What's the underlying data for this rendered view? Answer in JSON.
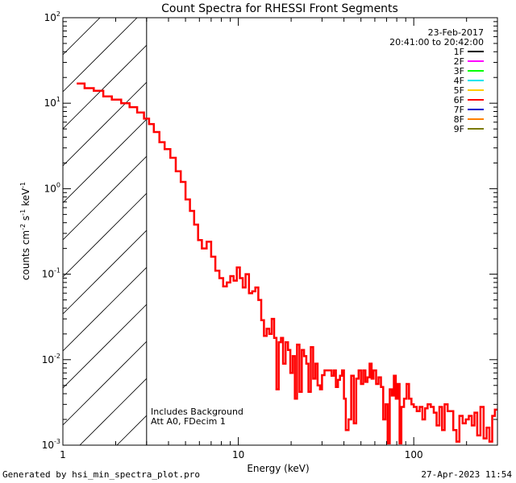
{
  "chart_data": {
    "type": "line",
    "title": "Count Spectra for RHESSI Front Segments",
    "xlabel": "Energy (keV)",
    "ylabel_main": "counts cm",
    "ylabel_exp1": "-2",
    "ylabel_mid": " s",
    "ylabel_exp2": "-1",
    "ylabel_tail": " keV",
    "ylabel_exp3": "-1",
    "xscale": "log",
    "yscale": "log",
    "xlim": [
      1,
      300
    ],
    "ylim": [
      0.001,
      100
    ],
    "x_ticks": [
      {
        "value": 1,
        "label": "1"
      },
      {
        "value": 10,
        "label": "10"
      },
      {
        "value": 100,
        "label": "100"
      }
    ],
    "y_ticks": [
      {
        "value": 0.001,
        "base": "10",
        "exp": "-3"
      },
      {
        "value": 0.01,
        "base": "10",
        "exp": "-2"
      },
      {
        "value": 0.1,
        "base": "10",
        "exp": "-1"
      },
      {
        "value": 1,
        "base": "10",
        "exp": "0"
      },
      {
        "value": 10,
        "base": "10",
        "exp": "1"
      },
      {
        "value": 100,
        "base": "10",
        "exp": "2"
      }
    ],
    "hatched_region": {
      "x_from": 1,
      "x_to": 3
    },
    "date": "23-Feb-2017",
    "time_range": "20:41:00 to 20:42:00",
    "legend": [
      {
        "label": "1F",
        "color": "#000000"
      },
      {
        "label": "2F",
        "color": "#ff00ff"
      },
      {
        "label": "3F",
        "color": "#00ff00"
      },
      {
        "label": "4F",
        "color": "#00e5ee"
      },
      {
        "label": "5F",
        "color": "#ffcc00"
      },
      {
        "label": "6F",
        "color": "#ff0000"
      },
      {
        "label": "7F",
        "color": "#0000cc"
      },
      {
        "label": "8F",
        "color": "#ff8000"
      },
      {
        "label": "9F",
        "color": "#7a7a00"
      }
    ],
    "annotations": [
      "Includes Background",
      "Att A0, FDecim 1"
    ],
    "series": [
      {
        "name": "6F",
        "color": "#ff0000",
        "steps": [
          [
            1.2,
            17
          ],
          [
            1.33,
            15
          ],
          [
            1.5,
            14
          ],
          [
            1.7,
            12
          ],
          [
            1.9,
            11
          ],
          [
            2.15,
            10
          ],
          [
            2.4,
            9
          ],
          [
            2.65,
            7.8
          ],
          [
            2.9,
            6.6
          ],
          [
            3.1,
            5.7
          ],
          [
            3.3,
            4.6
          ],
          [
            3.55,
            3.5
          ],
          [
            3.8,
            2.9
          ],
          [
            4.1,
            2.3
          ],
          [
            4.4,
            1.6
          ],
          [
            4.7,
            1.2
          ],
          [
            5.0,
            0.75
          ],
          [
            5.3,
            0.55
          ],
          [
            5.6,
            0.38
          ],
          [
            5.9,
            0.25
          ],
          [
            6.2,
            0.2
          ],
          [
            6.6,
            0.24
          ],
          [
            7.0,
            0.16
          ],
          [
            7.4,
            0.11
          ],
          [
            7.8,
            0.09
          ],
          [
            8.2,
            0.072
          ],
          [
            8.6,
            0.08
          ],
          [
            9.0,
            0.095
          ],
          [
            9.4,
            0.084
          ],
          [
            9.8,
            0.12
          ],
          [
            10.2,
            0.09
          ],
          [
            10.6,
            0.07
          ],
          [
            11.0,
            0.1
          ],
          [
            11.5,
            0.06
          ],
          [
            12.0,
            0.063
          ],
          [
            12.5,
            0.07
          ],
          [
            13.0,
            0.05
          ],
          [
            13.5,
            0.029
          ],
          [
            14.0,
            0.019
          ],
          [
            14.5,
            0.023
          ],
          [
            15.0,
            0.02
          ],
          [
            15.5,
            0.03
          ],
          [
            16.0,
            0.018
          ],
          [
            16.5,
            0.0045
          ],
          [
            17.0,
            0.016
          ],
          [
            17.5,
            0.018
          ],
          [
            18.0,
            0.009
          ],
          [
            18.6,
            0.016
          ],
          [
            19.2,
            0.013
          ],
          [
            19.8,
            0.007
          ],
          [
            20.4,
            0.011
          ],
          [
            21.0,
            0.0035
          ],
          [
            21.6,
            0.015
          ],
          [
            22.3,
            0.0042
          ],
          [
            23.0,
            0.013
          ],
          [
            23.7,
            0.011
          ],
          [
            24.4,
            0.009
          ],
          [
            25.1,
            0.0042
          ],
          [
            25.9,
            0.014
          ],
          [
            26.7,
            0.006
          ],
          [
            27.5,
            0.009
          ],
          [
            28.3,
            0.005
          ],
          [
            29.2,
            0.0045
          ],
          [
            30.0,
            0.0066
          ],
          [
            31.0,
            0.0075
          ],
          [
            32.0,
            0.0075
          ],
          [
            33.0,
            0.0075
          ],
          [
            34.0,
            0.0065
          ],
          [
            35.0,
            0.0075
          ],
          [
            36.0,
            0.0048
          ],
          [
            37.0,
            0.0058
          ],
          [
            38.0,
            0.0065
          ],
          [
            39.0,
            0.0075
          ],
          [
            40.0,
            0.0035
          ],
          [
            41.0,
            0.0015
          ],
          [
            42.5,
            0.002
          ],
          [
            44.0,
            0.0065
          ],
          [
            45.5,
            0.0018
          ],
          [
            47.0,
            0.006
          ],
          [
            48.5,
            0.0075
          ],
          [
            50.0,
            0.0052
          ],
          [
            51.5,
            0.0075
          ],
          [
            53.0,
            0.0055
          ],
          [
            54.5,
            0.0062
          ],
          [
            56.0,
            0.009
          ],
          [
            57.5,
            0.006
          ],
          [
            59.0,
            0.0075
          ],
          [
            61.0,
            0.0052
          ],
          [
            63.0,
            0.0062
          ],
          [
            65.0,
            0.0048
          ],
          [
            67.0,
            0.002
          ],
          [
            69.0,
            0.003
          ],
          [
            71.0,
            0.00105
          ],
          [
            73.0,
            0.0045
          ],
          [
            75.0,
            0.0038
          ],
          [
            77.0,
            0.0065
          ],
          [
            79.0,
            0.0035
          ],
          [
            81.0,
            0.0052
          ],
          [
            83.0,
            0.00105
          ],
          [
            85.0,
            0.0028
          ],
          [
            88.0,
            0.0035
          ],
          [
            91.0,
            0.0052
          ],
          [
            94.0,
            0.0035
          ],
          [
            97.0,
            0.003
          ],
          [
            100.0,
            0.0028
          ],
          [
            104.0,
            0.0025
          ],
          [
            108.0,
            0.0028
          ],
          [
            112.0,
            0.002
          ],
          [
            116.0,
            0.0027
          ],
          [
            120.0,
            0.003
          ],
          [
            125.0,
            0.0028
          ],
          [
            130.0,
            0.0024
          ],
          [
            135.0,
            0.0017
          ],
          [
            140.0,
            0.0028
          ],
          [
            145.0,
            0.0015
          ],
          [
            150.0,
            0.003
          ],
          [
            156.0,
            0.0025
          ],
          [
            162.0,
            0.0025
          ],
          [
            168.0,
            0.0015
          ],
          [
            175.0,
            0.0011
          ],
          [
            182.0,
            0.0022
          ],
          [
            190.0,
            0.0018
          ],
          [
            198.0,
            0.002
          ],
          [
            206.0,
            0.0022
          ],
          [
            214.0,
            0.0017
          ],
          [
            222.0,
            0.0024
          ],
          [
            230.0,
            0.0013
          ],
          [
            240.0,
            0.0028
          ],
          [
            250.0,
            0.0012
          ],
          [
            260.0,
            0.0016
          ],
          [
            270.0,
            0.0011
          ],
          [
            280.0,
            0.0022
          ],
          [
            290.0,
            0.0026
          ],
          [
            300.0,
            0.0026
          ]
        ]
      }
    ]
  },
  "footer": {
    "generated_by": "Generated by hsi_min_spectra_plot.pro",
    "timestamp": "27-Apr-2023 11:54"
  }
}
